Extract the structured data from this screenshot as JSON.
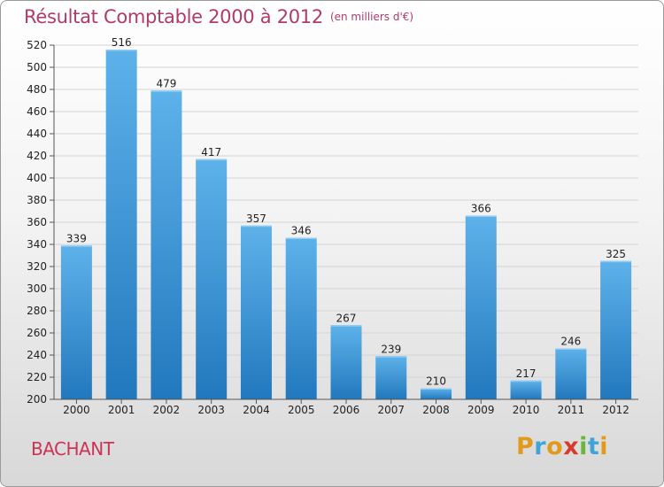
{
  "title": "Résultat Comptable 2000 à 2012",
  "unit_note": "(en milliers d'€)",
  "commune": "BACHANT",
  "logo": {
    "letters": [
      "P",
      "r",
      "o",
      "x",
      "i",
      "t",
      "i"
    ],
    "colors": [
      "#e39a1c",
      "#3fa4d8",
      "#e39a1c",
      "#d93a2a",
      "#6cb43b",
      "#3fa4d8",
      "#e39a1c"
    ]
  },
  "colors": {
    "bar_top": "#5eb2ea",
    "bar_bottom": "#2278bd",
    "title": "#b23a6a",
    "commune": "#cc3355"
  },
  "chart_data": {
    "type": "bar",
    "categories": [
      "2000",
      "2001",
      "2002",
      "2003",
      "2004",
      "2005",
      "2006",
      "2007",
      "2008",
      "2009",
      "2010",
      "2011",
      "2012"
    ],
    "values": [
      339,
      516,
      479,
      417,
      357,
      346,
      267,
      239,
      210,
      366,
      217,
      246,
      325
    ],
    "data_labels": [
      "339",
      "516",
      "479",
      "417",
      "357",
      "346",
      "267",
      "239",
      "210",
      "366",
      "217",
      "246",
      "325"
    ],
    "ylim": [
      200,
      520
    ],
    "yticks": [
      200,
      220,
      240,
      260,
      280,
      300,
      320,
      340,
      360,
      380,
      400,
      420,
      440,
      460,
      480,
      500,
      520
    ],
    "ytick_labels": [
      "200",
      "220",
      "240",
      "260",
      "280",
      "300",
      "320",
      "340",
      "360",
      "380",
      "400",
      "420",
      "440",
      "460",
      "480",
      "500",
      "520"
    ],
    "grid": true,
    "legend": "none"
  }
}
